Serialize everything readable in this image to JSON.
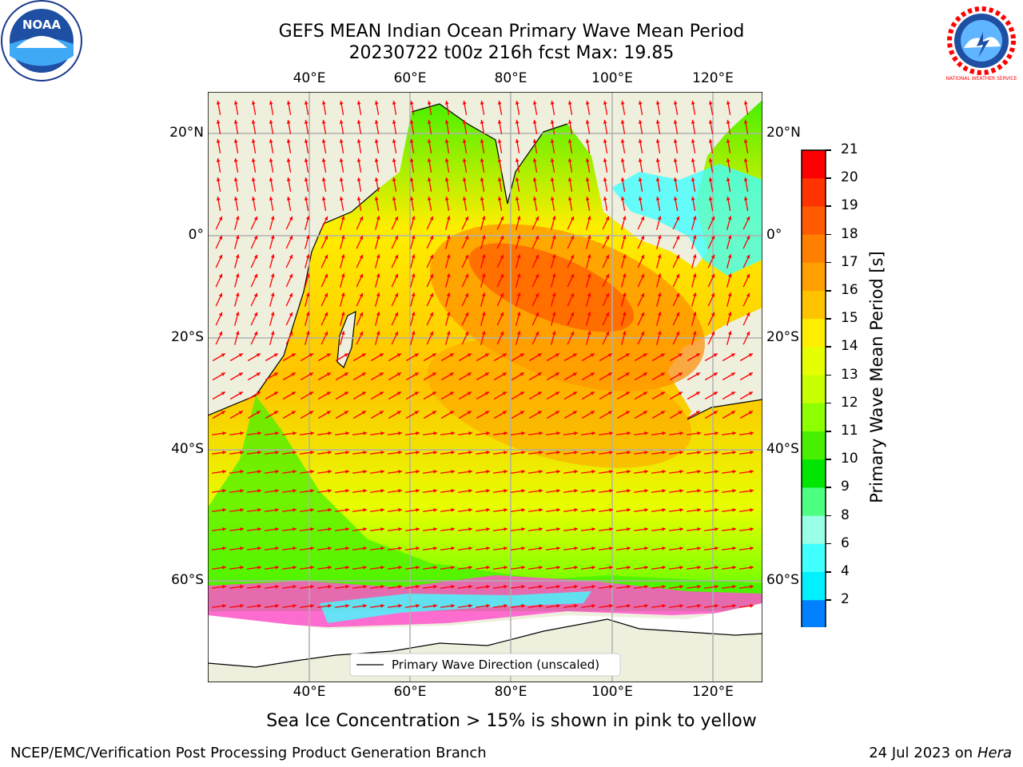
{
  "header": {
    "title": "GEFS MEAN Indian Ocean Primary Wave Mean Period",
    "subtitle": "20230722 t00z 216h fcst   Max: 19.85",
    "left_logo_text": "NOAA",
    "right_logo_text": "NATIONAL WEATHER SERVICE"
  },
  "map": {
    "lon_labels": [
      "40°E",
      "60°E",
      "80°E",
      "100°E",
      "120°E"
    ],
    "lat_labels": [
      "20°N",
      "0°",
      "20°S",
      "40°S",
      "60°S"
    ],
    "legend_label": "Primary Wave Direction (unscaled)",
    "colors": {
      "land": "#efefde",
      "ocean_mid": "#ffe600",
      "ocean_hot": "#ff8c00",
      "coast": "#000000",
      "arrow": "#ff0000"
    }
  },
  "colorbar": {
    "label": "Primary Wave Mean Period [s]",
    "ticks": [
      "21",
      "20",
      "19",
      "18",
      "17",
      "16",
      "15",
      "14",
      "13",
      "12",
      "11",
      "10",
      "9",
      "8",
      "6",
      "4",
      "2"
    ],
    "colors": [
      "#ff0000",
      "#ff3300",
      "#ff5a00",
      "#ff8000",
      "#ffa000",
      "#ffc300",
      "#ffee00",
      "#e6ff00",
      "#c8ff00",
      "#8cff00",
      "#46f000",
      "#00e600",
      "#4cff80",
      "#99ffe6",
      "#40ffff",
      "#00f0ff",
      "#0080ff",
      "#0000ff"
    ]
  },
  "footer": {
    "note": "Sea Ice Concentration > 15% is shown in pink to yellow",
    "credit": "NCEP/EMC/Verification Post Processing Product Generation Branch",
    "date": "24 Jul 2023 on ",
    "host": "Hera"
  }
}
